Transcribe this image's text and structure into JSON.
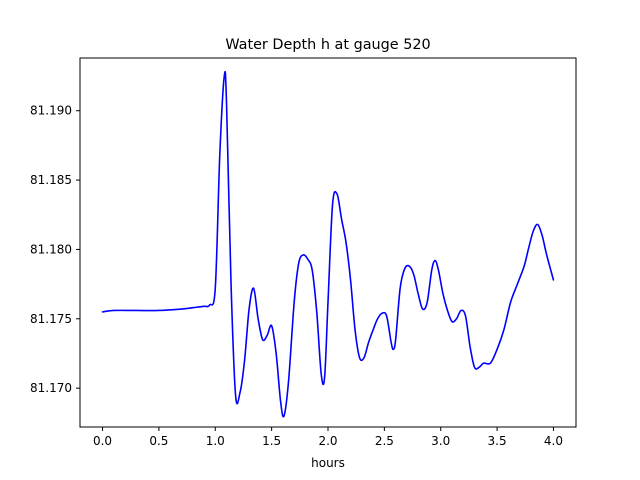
{
  "chart_data": {
    "type": "line",
    "title": "Water Depth h at gauge 520",
    "xlabel": "hours",
    "ylabel": "",
    "xlim": [
      -0.2,
      4.2
    ],
    "ylim": [
      81.1672,
      81.1938
    ],
    "x_ticks": [
      0.0,
      0.5,
      1.0,
      1.5,
      2.0,
      2.5,
      3.0,
      3.5,
      4.0
    ],
    "x_tick_labels": [
      "0.0",
      "0.5",
      "1.0",
      "1.5",
      "2.0",
      "2.5",
      "3.0",
      "3.5",
      "4.0"
    ],
    "y_ticks": [
      81.17,
      81.175,
      81.18,
      81.185,
      81.19
    ],
    "y_tick_labels": [
      "81.170",
      "81.175",
      "81.180",
      "81.185",
      "81.190"
    ],
    "grid": false,
    "series": [
      {
        "color": "#0000ff",
        "x": [
          0.0,
          0.1,
          0.3,
          0.5,
          0.7,
          0.8,
          0.9,
          0.95,
          1.0,
          1.04,
          1.08,
          1.1,
          1.14,
          1.18,
          1.22,
          1.26,
          1.3,
          1.34,
          1.38,
          1.42,
          1.46,
          1.5,
          1.54,
          1.58,
          1.61,
          1.65,
          1.7,
          1.74,
          1.78,
          1.82,
          1.86,
          1.9,
          1.94,
          1.97,
          2.0,
          2.04,
          2.08,
          2.12,
          2.16,
          2.2,
          2.24,
          2.28,
          2.32,
          2.36,
          2.4,
          2.44,
          2.48,
          2.52,
          2.56,
          2.58,
          2.6,
          2.64,
          2.68,
          2.72,
          2.76,
          2.8,
          2.84,
          2.88,
          2.92,
          2.95,
          2.98,
          3.02,
          3.06,
          3.1,
          3.14,
          3.18,
          3.22,
          3.26,
          3.3,
          3.34,
          3.38,
          3.44,
          3.5,
          3.56,
          3.62,
          3.68,
          3.74,
          3.78,
          3.82,
          3.86,
          3.9,
          3.94,
          4.0
        ],
        "y": [
          81.1755,
          81.1756,
          81.1756,
          81.1756,
          81.1757,
          81.1758,
          81.1759,
          81.176,
          81.1772,
          81.1868,
          81.1925,
          81.1905,
          81.1775,
          81.1695,
          81.1697,
          81.172,
          81.1757,
          81.1772,
          81.175,
          81.1735,
          81.1738,
          81.1745,
          81.1725,
          81.169,
          81.168,
          81.1705,
          81.1762,
          81.179,
          81.1796,
          81.1793,
          81.1785,
          81.1755,
          81.171,
          81.1708,
          81.1762,
          81.1832,
          81.184,
          81.1822,
          81.1805,
          81.1778,
          81.1742,
          81.1722,
          81.1722,
          81.1733,
          81.1742,
          81.175,
          81.1754,
          81.1752,
          81.1733,
          81.1728,
          81.1735,
          81.1772,
          81.1786,
          81.1788,
          81.1782,
          81.1768,
          81.1757,
          81.1762,
          81.1785,
          81.1792,
          81.1785,
          81.1768,
          81.1756,
          81.1748,
          81.175,
          81.1756,
          81.1752,
          81.173,
          81.1715,
          81.1715,
          81.1718,
          81.1718,
          81.1728,
          81.1742,
          81.1762,
          81.1775,
          81.1788,
          81.1801,
          81.1813,
          81.1818,
          81.181,
          81.1796,
          81.1778
        ]
      }
    ]
  }
}
